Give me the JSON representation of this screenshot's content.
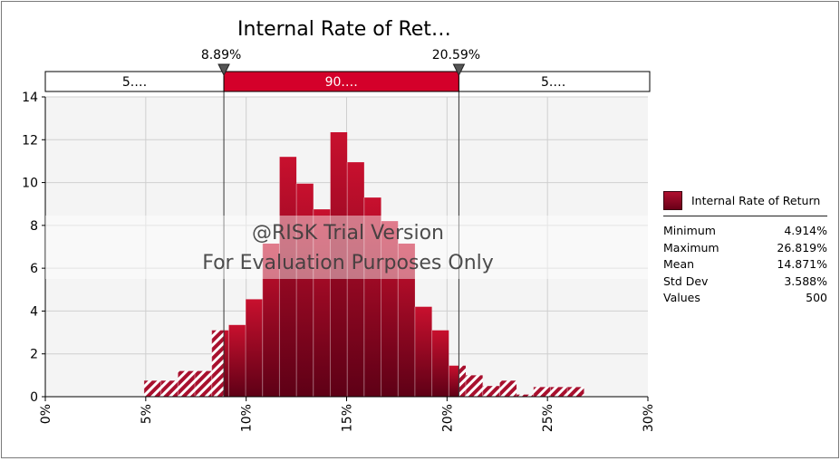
{
  "chart_data": {
    "type": "bar",
    "title": "Internal Rate of Ret…",
    "series_name": "Internal Rate of Return",
    "x_ticks": [
      "0%",
      "5%",
      "10%",
      "15%",
      "20%",
      "25%",
      "30%"
    ],
    "x_tick_values": [
      0,
      5,
      10,
      15,
      20,
      25,
      30
    ],
    "y_ticks": [
      "0",
      "2",
      "4",
      "6",
      "8",
      "10",
      "12",
      "14"
    ],
    "y_tick_values": [
      0,
      2,
      4,
      6,
      8,
      10,
      12,
      14
    ],
    "xlim": [
      0,
      30
    ],
    "ylim": [
      0,
      14
    ],
    "bin_edges": [
      4.914,
      5.757,
      6.6,
      7.443,
      8.286,
      9.129,
      9.972,
      10.815,
      11.658,
      12.501,
      13.344,
      14.187,
      15.03,
      15.873,
      16.716,
      17.559,
      18.402,
      19.245,
      20.088,
      20.931,
      21.774,
      22.617,
      23.46,
      24.303,
      25.146,
      25.989,
      26.819
    ],
    "counts": [
      0.75,
      0.75,
      1.2,
      1.2,
      3.1,
      3.35,
      4.55,
      7.15,
      11.2,
      9.95,
      8.75,
      12.35,
      10.95,
      9.3,
      8.2,
      7.15,
      4.2,
      3.1,
      1.45,
      1.0,
      0.5,
      0.75,
      0.1,
      0.45,
      0.45,
      0.45
    ],
    "lower_delimiter": 8.89,
    "upper_delimiter": 20.59,
    "lower_delimiter_label": "8.89%",
    "upper_delimiter_label": "20.59%",
    "band_left_label": "5.…",
    "band_mid_label": "90.…",
    "band_right_label": "5.…",
    "colors": {
      "bar_dark": "#5e0016",
      "bar_light": "#c8102e",
      "band_mid": "#d4002a",
      "plot_bg": "#f4f4f4"
    },
    "grid": true,
    "legend_position": "right"
  },
  "watermark": {
    "line1": "@RISK Trial Version",
    "line2": "For Evaluation Purposes Only"
  },
  "stats": {
    "rows": [
      {
        "label": "Minimum",
        "value": "4.914%"
      },
      {
        "label": "Maximum",
        "value": "26.819%"
      },
      {
        "label": "Mean",
        "value": "14.871%"
      },
      {
        "label": "Std Dev",
        "value": "3.588%"
      },
      {
        "label": "Values",
        "value": "500"
      }
    ]
  }
}
